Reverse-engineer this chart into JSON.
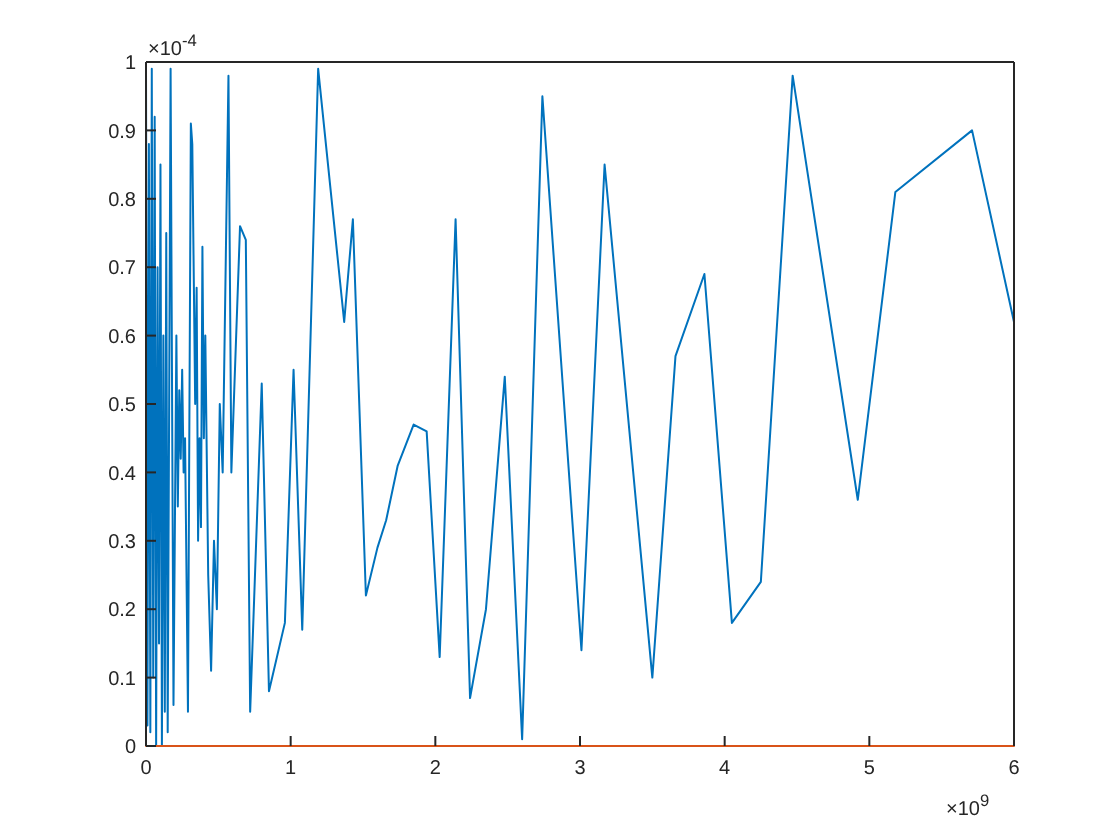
{
  "chart_data": {
    "type": "line",
    "x": [
      0,
      0.01,
      0.02,
      0.03,
      0.04,
      0.05,
      0.06,
      0.07,
      0.08,
      0.09,
      0.1,
      0.11,
      0.12,
      0.13,
      0.14,
      0.15,
      0.16,
      0.17,
      0.19,
      0.21,
      0.22,
      0.23,
      0.24,
      0.25,
      0.26,
      0.27,
      0.29,
      0.31,
      0.32,
      0.34,
      0.35,
      0.36,
      0.37,
      0.38,
      0.39,
      0.4,
      0.41,
      0.43,
      0.45,
      0.47,
      0.49,
      0.51,
      0.53,
      0.57,
      0.59,
      0.65,
      0.69,
      0.72,
      0.8,
      0.85,
      0.96,
      1.02,
      1.08,
      1.19,
      1.37,
      1.43,
      1.52,
      1.6,
      1.66,
      1.74,
      1.85,
      1.94,
      2.03,
      2.14,
      2.24,
      2.35,
      2.48,
      2.6,
      2.74,
      3.01,
      3.17,
      3.5,
      3.66,
      3.86,
      4.05,
      4.25,
      4.47,
      4.92,
      5.18,
      5.71,
      6
    ],
    "series": [
      {
        "color": "#0072bd",
        "values": [
          0.99,
          0.03,
          0.88,
          0.02,
          0.99,
          0.1,
          0.92,
          0,
          0.7,
          0.15,
          0.85,
          0,
          0.6,
          0.05,
          0.75,
          0.02,
          0.5,
          0.99,
          0.06,
          0.6,
          0.35,
          0.52,
          0.42,
          0.55,
          0.4,
          0.45,
          0.05,
          0.91,
          0.88,
          0.5,
          0.67,
          0.3,
          0.45,
          0.32,
          0.73,
          0.45,
          0.6,
          0.25,
          0.11,
          0.3,
          0.2,
          0.5,
          0.4,
          0.98,
          0.4,
          0.76,
          0.74,
          0.05,
          0.53,
          0.08,
          0.18,
          0.55,
          0.17,
          0.99,
          0.62,
          0.77,
          0.22,
          0.29,
          0.33,
          0.41,
          0.47,
          0.46,
          0.13,
          0.77,
          0.07,
          0.2,
          0.54,
          0.01,
          0.95,
          0.14,
          0.85,
          0.1,
          0.57,
          0.69,
          0.18,
          0.24,
          0.98,
          0.36,
          0.81,
          0.9,
          0.62
        ]
      },
      {
        "color": "#d95319",
        "x": [
          0,
          6
        ],
        "values": [
          0,
          0
        ]
      }
    ],
    "xlim": [
      0,
      6
    ],
    "ylim": [
      0,
      1
    ],
    "xticks": [
      0,
      1,
      2,
      3,
      4,
      5,
      6
    ],
    "yticks": [
      0,
      0.1,
      0.2,
      0.3,
      0.4,
      0.5,
      0.6,
      0.7,
      0.8,
      0.9,
      1
    ],
    "annotations": [
      "×10$^{-4}$",
      "×10$^{9}$"
    ],
    "marker": "none"
  }
}
